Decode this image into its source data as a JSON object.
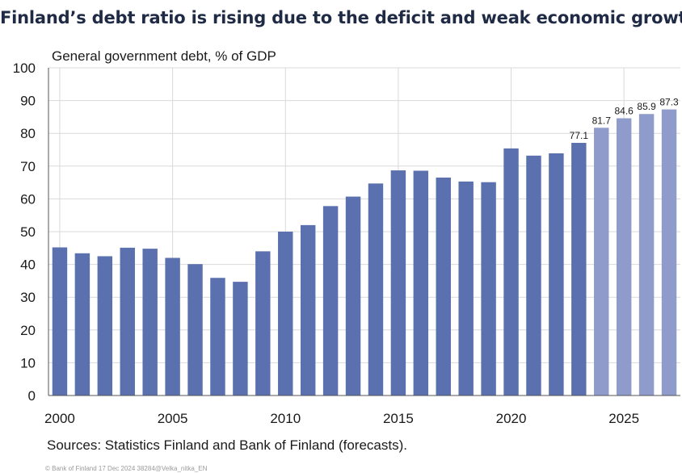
{
  "title": "Finland’s debt ratio is rising due to the deficit and weak economic growth",
  "source": "Sources: Statistics Finland and Bank of Finland (forecasts).",
  "footer": "© Bank of Finland 17 Dec 2024 38284@Velka_nitka_EN",
  "colors": {
    "actual": "#5b70ae",
    "forecast": "#8e9bcb",
    "grid": "#d9d9d9",
    "axis": "#555555"
  },
  "chart_data": {
    "type": "bar",
    "title": "Finland’s debt ratio is rising due to the deficit and weak economic growth",
    "ylabel": "General government debt, % of GDP",
    "xlabel": "",
    "ylim": [
      0,
      100
    ],
    "yticks": [
      0,
      10,
      20,
      30,
      40,
      50,
      60,
      70,
      80,
      90,
      100
    ],
    "xticks": [
      "2000",
      "2005",
      "2010",
      "2015",
      "2020",
      "2025"
    ],
    "grid": true,
    "categories": [
      2000,
      2001,
      2002,
      2003,
      2004,
      2005,
      2006,
      2007,
      2008,
      2009,
      2010,
      2011,
      2012,
      2013,
      2014,
      2015,
      2016,
      2017,
      2018,
      2019,
      2020,
      2021,
      2022,
      2023,
      2024,
      2025,
      2026,
      2027
    ],
    "values": [
      45.2,
      43.4,
      42.5,
      45.1,
      44.8,
      42.0,
      40.1,
      35.9,
      34.7,
      44.0,
      50.0,
      52.0,
      57.8,
      60.7,
      64.7,
      68.7,
      68.6,
      66.5,
      65.3,
      65.1,
      75.4,
      73.2,
      73.9,
      77.1,
      81.7,
      84.6,
      85.9,
      87.3
    ],
    "forecast": [
      false,
      false,
      false,
      false,
      false,
      false,
      false,
      false,
      false,
      false,
      false,
      false,
      false,
      false,
      false,
      false,
      false,
      false,
      false,
      false,
      false,
      false,
      false,
      false,
      true,
      true,
      true,
      true
    ],
    "data_labels": [
      "",
      "",
      "",
      "",
      "",
      "",
      "",
      "",
      "",
      "",
      "",
      "",
      "",
      "",
      "",
      "",
      "",
      "",
      "",
      "",
      "",
      "",
      "",
      "77.1",
      "81.7",
      "84.6",
      "85.9",
      "87.3"
    ]
  }
}
